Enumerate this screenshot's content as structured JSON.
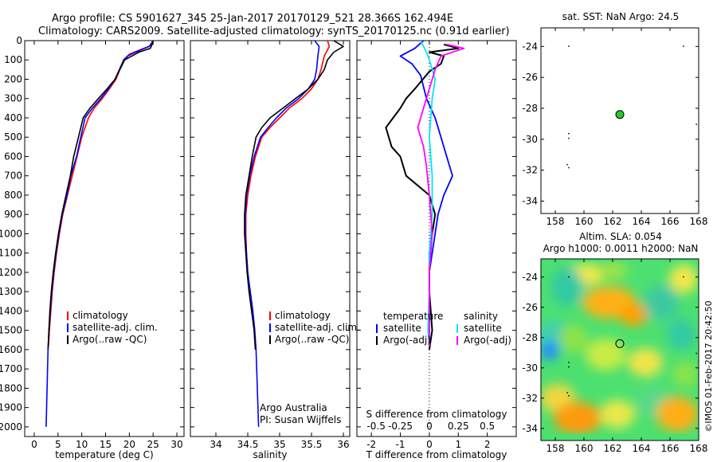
{
  "header": {
    "line1": "Argo profile: CS 5901627_345 25-Jan-2017 20170129_521 28.366S 162.494E",
    "line2": "Climatology: CARS2009. Satellite-adjusted climatology: synTS_20170125.nc (0.91d earlier)"
  },
  "credit": {
    "org": "Argo Australia",
    "pi": "PI: Susan Wijffels",
    "stamp": "©IMOS 01-Feb-2017 20:42:50"
  },
  "colors": {
    "climatology": "#ff0000",
    "satellite": "#0000ff",
    "argo": "#000000",
    "satellite_s": "#00e5ff",
    "argo_s": "#ff00ff",
    "float": "#22cc22"
  },
  "chart_data": [
    {
      "id": "temperature",
      "type": "line",
      "xlabel": "temperature (deg C)",
      "ylabel": "",
      "xlim": [
        -2,
        31.5
      ],
      "ylim": [
        2050,
        0
      ],
      "xticks": [
        0,
        5,
        10,
        15,
        20,
        25,
        30
      ],
      "yticks": [
        0,
        100,
        200,
        300,
        400,
        500,
        600,
        700,
        800,
        900,
        1000,
        1100,
        1200,
        1300,
        1400,
        1500,
        1600,
        1700,
        1800,
        1900,
        2000
      ],
      "legend": {
        "position": "lower-middle",
        "entries": [
          "climatology",
          "satellite-adj. clim.",
          "Argo(..raw -QC)"
        ]
      },
      "series": [
        {
          "name": "climatology",
          "color": "#ff0000",
          "points": [
            [
              25,
              0
            ],
            [
              24.6,
              25
            ],
            [
              22,
              50
            ],
            [
              20,
              70
            ],
            [
              19,
              100
            ],
            [
              18,
              150
            ],
            [
              17.2,
              200
            ],
            [
              15.8,
              250
            ],
            [
              14.3,
              300
            ],
            [
              12.6,
              350
            ],
            [
              11.4,
              400
            ],
            [
              10,
              500
            ],
            [
              9,
              600
            ],
            [
              8,
              700
            ],
            [
              7,
              800
            ],
            [
              6,
              900
            ],
            [
              5.3,
              1000
            ],
            [
              4.7,
              1100
            ],
            [
              4.2,
              1200
            ],
            [
              3.8,
              1300
            ],
            [
              3.5,
              1400
            ],
            [
              3.2,
              1500
            ],
            [
              3,
              1580
            ]
          ]
        },
        {
          "name": "satellite-adj. clim.",
          "color": "#0000ff",
          "points": [
            [
              25,
              0
            ],
            [
              24.2,
              30
            ],
            [
              21.3,
              60
            ],
            [
              19.6,
              80
            ],
            [
              18.8,
              100
            ],
            [
              17.9,
              150
            ],
            [
              17,
              200
            ],
            [
              15.6,
              250
            ],
            [
              14,
              300
            ],
            [
              12.2,
              350
            ],
            [
              10.7,
              400
            ],
            [
              9.8,
              500
            ],
            [
              8.9,
              600
            ],
            [
              7.7,
              700
            ],
            [
              6.9,
              800
            ],
            [
              5.9,
              900
            ],
            [
              5.2,
              1000
            ],
            [
              4.6,
              1100
            ],
            [
              4.1,
              1200
            ],
            [
              3.7,
              1300
            ],
            [
              3.4,
              1400
            ],
            [
              3.1,
              1500
            ],
            [
              2.9,
              1600
            ],
            [
              2.8,
              1700
            ],
            [
              2.7,
              1800
            ],
            [
              2.6,
              1900
            ],
            [
              2.5,
              2000
            ]
          ]
        },
        {
          "name": "Argo(..raw -QC)",
          "color": "#000000",
          "points": [
            [
              25,
              0
            ],
            [
              24.8,
              20
            ],
            [
              24.4,
              40
            ],
            [
              22,
              60
            ],
            [
              20.5,
              80
            ],
            [
              19,
              100
            ],
            [
              18,
              150
            ],
            [
              17,
              200
            ],
            [
              15.3,
              250
            ],
            [
              13.5,
              300
            ],
            [
              11.7,
              350
            ],
            [
              10.3,
              400
            ],
            [
              9.3,
              500
            ],
            [
              8.3,
              600
            ],
            [
              7.6,
              700
            ],
            [
              6.7,
              800
            ],
            [
              5.8,
              900
            ],
            [
              5.1,
              1000
            ],
            [
              4.5,
              1100
            ],
            [
              4,
              1200
            ],
            [
              3.6,
              1300
            ],
            [
              3.3,
              1400
            ],
            [
              3.1,
              1500
            ],
            [
              2.9,
              1600
            ]
          ]
        }
      ]
    },
    {
      "id": "salinity",
      "type": "line",
      "xlabel": "salinity",
      "ylabel": "",
      "xlim": [
        33.6,
        36.1
      ],
      "ylim": [
        2050,
        0
      ],
      "xticks": [
        34,
        34.5,
        35,
        35.5,
        36
      ],
      "legend": {
        "position": "lower-middle",
        "entries": [
          "climatology",
          "satellite-adj. clim.",
          "Argo(..raw -QC)"
        ]
      },
      "series": [
        {
          "name": "climatology",
          "color": "#ff0000",
          "points": [
            [
              35.75,
              0
            ],
            [
              35.78,
              30
            ],
            [
              35.7,
              80
            ],
            [
              35.65,
              150
            ],
            [
              35.6,
              200
            ],
            [
              35.5,
              250
            ],
            [
              35.35,
              300
            ],
            [
              35.15,
              350
            ],
            [
              35,
              400
            ],
            [
              34.85,
              450
            ],
            [
              34.72,
              500
            ],
            [
              34.62,
              600
            ],
            [
              34.55,
              700
            ],
            [
              34.5,
              800
            ],
            [
              34.47,
              900
            ],
            [
              34.47,
              1000
            ],
            [
              34.48,
              1100
            ],
            [
              34.5,
              1200
            ],
            [
              34.53,
              1300
            ],
            [
              34.57,
              1400
            ],
            [
              34.6,
              1500
            ],
            [
              34.62,
              1600
            ]
          ]
        },
        {
          "name": "satellite-adj. clim.",
          "color": "#0000ff",
          "points": [
            [
              35.55,
              0
            ],
            [
              35.62,
              30
            ],
            [
              35.6,
              80
            ],
            [
              35.58,
              150
            ],
            [
              35.55,
              200
            ],
            [
              35.45,
              250
            ],
            [
              35.3,
              300
            ],
            [
              35.1,
              350
            ],
            [
              34.95,
              400
            ],
            [
              34.82,
              450
            ],
            [
              34.7,
              500
            ],
            [
              34.6,
              600
            ],
            [
              34.53,
              700
            ],
            [
              34.48,
              800
            ],
            [
              34.46,
              900
            ],
            [
              34.46,
              1000
            ],
            [
              34.48,
              1100
            ],
            [
              34.5,
              1200
            ],
            [
              34.54,
              1300
            ],
            [
              34.58,
              1400
            ],
            [
              34.61,
              1500
            ],
            [
              34.63,
              1600
            ],
            [
              34.64,
              1700
            ],
            [
              34.65,
              1800
            ],
            [
              34.66,
              1900
            ],
            [
              34.67,
              2000
            ]
          ]
        },
        {
          "name": "Argo(..raw -QC)",
          "color": "#000000",
          "points": [
            [
              35.85,
              0
            ],
            [
              36,
              30
            ],
            [
              35.85,
              60
            ],
            [
              35.75,
              100
            ],
            [
              35.7,
              150
            ],
            [
              35.6,
              200
            ],
            [
              35.45,
              250
            ],
            [
              35.25,
              300
            ],
            [
              35.05,
              350
            ],
            [
              34.85,
              400
            ],
            [
              34.72,
              450
            ],
            [
              34.63,
              500
            ],
            [
              34.57,
              600
            ],
            [
              34.52,
              700
            ],
            [
              34.47,
              800
            ],
            [
              34.45,
              900
            ],
            [
              34.45,
              1000
            ],
            [
              34.47,
              1100
            ],
            [
              34.49,
              1200
            ],
            [
              34.52,
              1300
            ],
            [
              34.56,
              1400
            ],
            [
              34.6,
              1500
            ],
            [
              34.62,
              1600
            ]
          ]
        }
      ]
    },
    {
      "id": "difference",
      "type": "line",
      "xlabel": "T difference from climatology",
      "xlabel_top": "S difference from climatology",
      "xlim": [
        -2.5,
        3
      ],
      "ylim": [
        2050,
        0
      ],
      "xticks": [
        -2,
        -1,
        0,
        1,
        2
      ],
      "xticks_s": [
        -0.5,
        -0.25,
        0,
        0.25,
        0.5
      ],
      "xtick_labels_s": [
        "-0.5",
        "-0.25",
        "0",
        "0.25",
        "0.5"
      ],
      "legend": {
        "position": "lower-middle",
        "temperature_title": "temperature",
        "salinity_title": "salinity",
        "entries_t": [
          "satellite",
          "Argo(-adj)"
        ],
        "entries_s": [
          "satellite",
          "Argo(-adj)"
        ]
      },
      "series": [
        {
          "name": "satellite",
          "color": "#0000ff",
          "points": [
            [
              -0.2,
              0
            ],
            [
              -0.5,
              40
            ],
            [
              -1,
              80
            ],
            [
              -0.6,
              120
            ],
            [
              -0.3,
              180
            ],
            [
              -0.1,
              300
            ],
            [
              0.2,
              400
            ],
            [
              0.4,
              500
            ],
            [
              0.6,
              600
            ],
            [
              0.8,
              700
            ],
            [
              0.5,
              800
            ],
            [
              0.3,
              900
            ],
            [
              0.2,
              1000
            ],
            [
              0.1,
              1100
            ],
            [
              0,
              1200
            ],
            [
              0,
              1400
            ],
            [
              0,
              1580
            ]
          ]
        },
        {
          "name": "Argo(-adj)",
          "color": "#000000",
          "points": [
            [
              0.5,
              20
            ],
            [
              1,
              40
            ],
            [
              0,
              60
            ],
            [
              0.5,
              80
            ],
            [
              0.4,
              120
            ],
            [
              0,
              160
            ],
            [
              -0.5,
              250
            ],
            [
              -0.8,
              300
            ],
            [
              -1,
              350
            ],
            [
              -1.5,
              450
            ],
            [
              -1.3,
              550
            ],
            [
              -1,
              600
            ],
            [
              -0.8,
              700
            ],
            [
              0,
              800
            ],
            [
              0.2,
              900
            ],
            [
              0.1,
              1000
            ],
            [
              0,
              1100
            ],
            [
              0,
              1300
            ],
            [
              0.1,
              1500
            ],
            [
              0,
              1600
            ]
          ]
        },
        {
          "name": "satellite",
          "color": "#00e5ff",
          "points": [
            [
              -0.3,
              0
            ],
            [
              -0.1,
              60
            ],
            [
              0,
              100
            ],
            [
              0.2,
              200
            ],
            [
              0.1,
              300
            ],
            [
              0,
              500
            ],
            [
              0.1,
              700
            ],
            [
              0.1,
              900
            ],
            [
              0,
              1100
            ],
            [
              0,
              1300
            ],
            [
              -0.05,
              1500
            ],
            [
              0,
              1580
            ]
          ]
        },
        {
          "name": "Argo(-adj)",
          "color": "#ff00ff",
          "points": [
            [
              0.6,
              20
            ],
            [
              1.2,
              40
            ],
            [
              0.4,
              80
            ],
            [
              0.2,
              150
            ],
            [
              0,
              250
            ],
            [
              -0.2,
              350
            ],
            [
              -0.4,
              450
            ],
            [
              -0.2,
              550
            ],
            [
              -0.1,
              650
            ],
            [
              0,
              800
            ],
            [
              0.1,
              1000
            ],
            [
              0,
              1200
            ],
            [
              0,
              1400
            ],
            [
              0,
              1580
            ]
          ]
        }
      ]
    },
    {
      "id": "sst_map",
      "type": "scatter",
      "title": "sat. SST: NaN Argo: 24.5",
      "xlim": [
        157,
        168
      ],
      "ylim": [
        -34.8,
        -22.8
      ],
      "xticks": [
        158,
        160,
        162,
        164,
        166,
        168
      ],
      "yticks": [
        -24,
        -26,
        -28,
        -30,
        -32,
        -34
      ],
      "float_position": [
        162.5,
        -28.4
      ]
    },
    {
      "id": "sla_map",
      "type": "heatmap",
      "title": "Altim. SLA: 0.054",
      "subtitle": "Argo h1000: 0.0011 h2000: NaN",
      "xlim": [
        157,
        168
      ],
      "ylim": [
        -34.8,
        -22.8
      ],
      "xticks": [
        158,
        160,
        162,
        164,
        166,
        168
      ],
      "yticks": [
        -24,
        -26,
        -28,
        -30,
        -32,
        -34
      ],
      "float_position": [
        162.5,
        -28.4
      ]
    }
  ]
}
